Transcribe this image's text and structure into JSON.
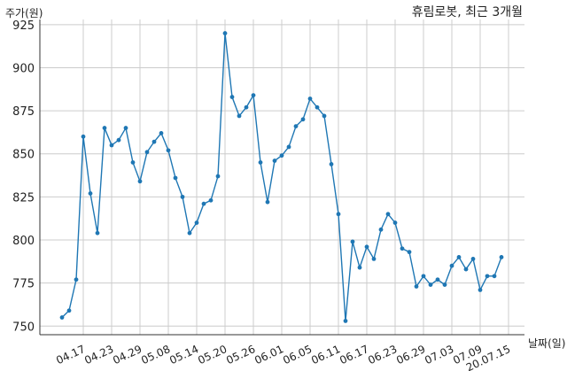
{
  "chart_data": {
    "type": "line",
    "title": "휴림로봇, 최근 3개월",
    "ylabel": "주가(원)",
    "xlabel": "날짜(일)",
    "ylim": [
      745,
      928
    ],
    "yticks": [
      750,
      775,
      800,
      825,
      850,
      875,
      900,
      925
    ],
    "x_tick_labels": [
      "04.17",
      "04.23",
      "04.29",
      "05.08",
      "05.14",
      "05.20",
      "05.26",
      "06.01",
      "06.05",
      "06.11",
      "06.17",
      "06.23",
      "06.29",
      "07.03",
      "07.09",
      "20.07.15"
    ],
    "x_tick_index": [
      3,
      7,
      11,
      15,
      19,
      23,
      27,
      31,
      35,
      39,
      43,
      47,
      51,
      55,
      59,
      63
    ],
    "series": [
      {
        "color": "#1f77b4",
        "values": [
          755,
          759,
          777,
          860,
          827,
          804,
          865,
          855,
          858,
          865,
          845,
          834,
          851,
          857,
          862,
          852,
          836,
          825,
          804,
          810,
          821,
          823,
          837,
          920,
          883,
          872,
          877,
          884,
          845,
          822,
          846,
          849,
          854,
          866,
          870,
          882,
          877,
          872,
          844,
          815,
          753,
          799,
          784,
          796,
          789,
          806,
          815,
          810,
          795,
          793,
          773,
          779,
          774,
          777,
          774,
          785,
          790,
          783,
          789,
          771,
          779,
          779,
          790
        ]
      }
    ],
    "grid": true
  }
}
